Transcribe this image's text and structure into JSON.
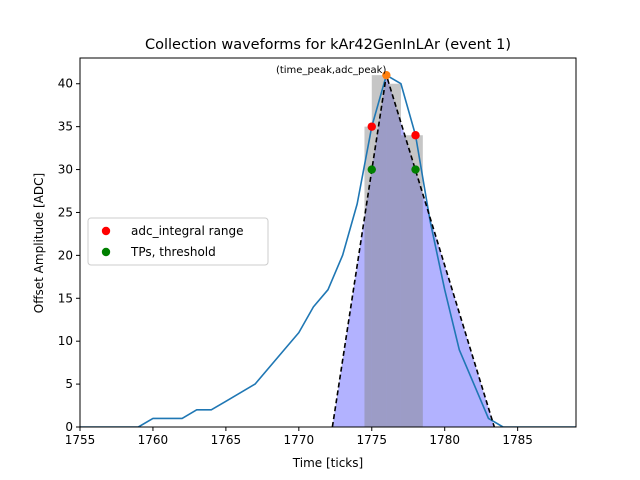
{
  "chart_data": {
    "type": "line",
    "title": "Collection waveforms for kAr42GenInLAr (event 1)",
    "xlabel": "Time [ticks]",
    "ylabel": "Offset Amplitude [ADC]",
    "xlim": [
      1755,
      1789
    ],
    "ylim": [
      0,
      43
    ],
    "xticks": [
      1755,
      1760,
      1765,
      1770,
      1775,
      1780,
      1785
    ],
    "yticks": [
      0,
      5,
      10,
      15,
      20,
      25,
      30,
      35,
      40
    ],
    "grid": false,
    "legend_placement": "center-left",
    "waveform": {
      "color": "#1f77b4",
      "x": [
        1755,
        1759,
        1760,
        1762,
        1763,
        1764,
        1765,
        1767,
        1769,
        1770,
        1771,
        1772,
        1773,
        1774,
        1775,
        1776,
        1777,
        1778,
        1779,
        1780,
        1781,
        1782,
        1783,
        1784,
        1789
      ],
      "y": [
        0,
        0,
        1,
        1,
        2,
        2,
        3,
        5,
        9,
        11,
        14,
        16,
        20,
        26,
        35,
        41,
        40,
        34,
        24,
        16,
        9,
        5,
        1,
        0,
        0
      ]
    },
    "filled_triangle": {
      "color": "#0000ff",
      "x": [
        1772.3,
        1776,
        1783.4
      ],
      "y": [
        0,
        41,
        0
      ]
    },
    "gray_bars": {
      "color": "#808080",
      "x0": [
        1774.5,
        1775,
        1776,
        1777,
        1778
      ],
      "x1": [
        1775,
        1776,
        1777,
        1778,
        1778.5
      ],
      "heights": [
        35,
        41,
        40,
        34,
        34
      ]
    },
    "annotation": {
      "text": "(time_peak,adc_peak)",
      "x": 1776,
      "y": 41
    },
    "peak_point": {
      "x": 1776,
      "y": 41,
      "color": "#ff7f0e"
    },
    "legend": [
      {
        "label": "adc_integral range",
        "color": "#ff0000"
      },
      {
        "label": "TPs, threshold",
        "color": "#008000"
      }
    ],
    "adc_integral_range": {
      "x": [
        1775,
        1778
      ],
      "y": [
        35,
        34
      ],
      "color": "#ff0000"
    },
    "tps_threshold": {
      "x": [
        1775,
        1778
      ],
      "y": [
        30,
        30
      ],
      "color": "#008000"
    }
  }
}
